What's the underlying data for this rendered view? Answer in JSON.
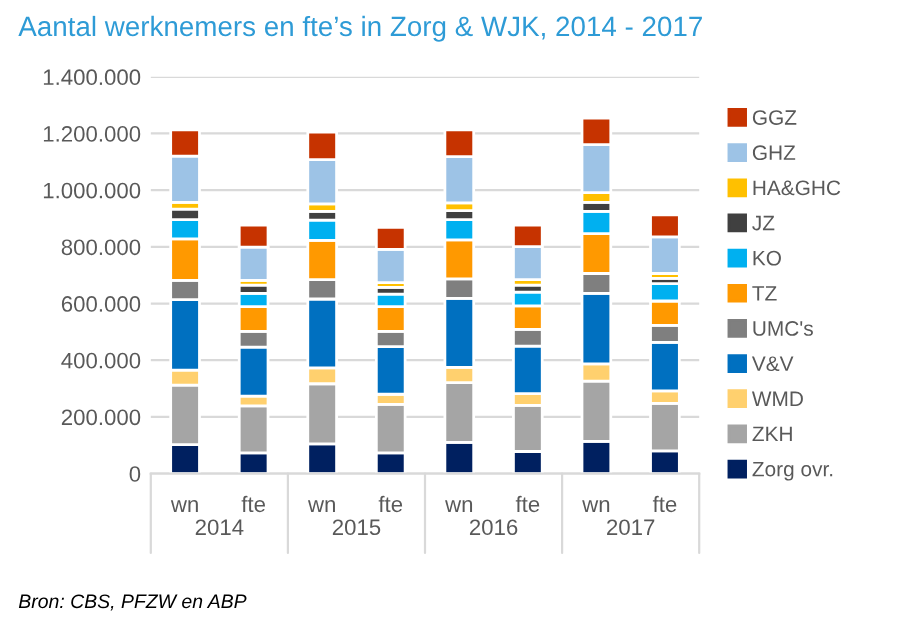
{
  "chart_data": {
    "type": "bar",
    "stacked": true,
    "title": "Aantal werknemers en fte’s in Zorg & WJK, 2014 - 2017",
    "categories": [
      "wn",
      "fte",
      "wn",
      "fte",
      "wn",
      "fte",
      "wn",
      "fte"
    ],
    "annotations": [
      "2014",
      "2015",
      "2016",
      "2017",
      "Bron: CBS, PFZW en ABP"
    ],
    "ylim": [
      0,
      1400000
    ],
    "yticks": [
      {
        "value": 0,
        "label": "0"
      },
      {
        "value": 200000,
        "label": "200.000"
      },
      {
        "value": 400000,
        "label": "400.000"
      },
      {
        "value": 600000,
        "label": "600.000"
      },
      {
        "value": 800000,
        "label": "800.000"
      },
      {
        "value": 1000000,
        "label": "1.000.000"
      },
      {
        "value": 1200000,
        "label": "1.200.000"
      },
      {
        "value": 1400000,
        "label": "1.400.000"
      }
    ],
    "grid": "y",
    "legend": "right",
    "series": [
      {
        "name": "Zorg ovr.",
        "color": "#002060",
        "values": [
          102000,
          73000,
          105000,
          73000,
          110000,
          78000,
          114000,
          80000
        ]
      },
      {
        "name": "ZKH",
        "color": "#a5a5a5",
        "values": [
          210000,
          166000,
          212000,
          171000,
          211000,
          163000,
          212000,
          168000
        ]
      },
      {
        "name": "WMD",
        "color": "#ffd06e",
        "values": [
          53000,
          34000,
          56000,
          36000,
          54000,
          41000,
          61000,
          44000
        ]
      },
      {
        "name": "V&V",
        "color": "#0070c0",
        "values": [
          249000,
          173000,
          243000,
          168000,
          243000,
          168000,
          249000,
          171000
        ]
      },
      {
        "name": "UMC's",
        "color": "#7f7f7f",
        "values": [
          68000,
          56000,
          68000,
          54000,
          69000,
          59000,
          70000,
          60000
        ]
      },
      {
        "name": "TZ",
        "color": "#ff9900",
        "values": [
          146000,
          87000,
          139000,
          87000,
          138000,
          83000,
          141000,
          86000
        ]
      },
      {
        "name": "KO",
        "color": "#00b0f0",
        "values": [
          68000,
          47000,
          71000,
          44000,
          71000,
          48000,
          78000,
          61000
        ]
      },
      {
        "name": "JZ",
        "color": "#404040",
        "values": [
          37000,
          29000,
          31000,
          24000,
          32000,
          25000,
          32000,
          19000
        ]
      },
      {
        "name": "HA&GHC",
        "color": "#ffc000",
        "values": [
          24000,
          17000,
          27000,
          17000,
          27000,
          19000,
          34000,
          17000
        ]
      },
      {
        "name": "GHZ",
        "color": "#9dc3e6",
        "values": [
          163000,
          117000,
          156000,
          117000,
          163000,
          117000,
          170000,
          129000
        ]
      },
      {
        "name": "GGZ",
        "color": "#c63300",
        "values": [
          93000,
          78000,
          97000,
          78000,
          95000,
          76000,
          93000,
          78000
        ]
      }
    ]
  }
}
